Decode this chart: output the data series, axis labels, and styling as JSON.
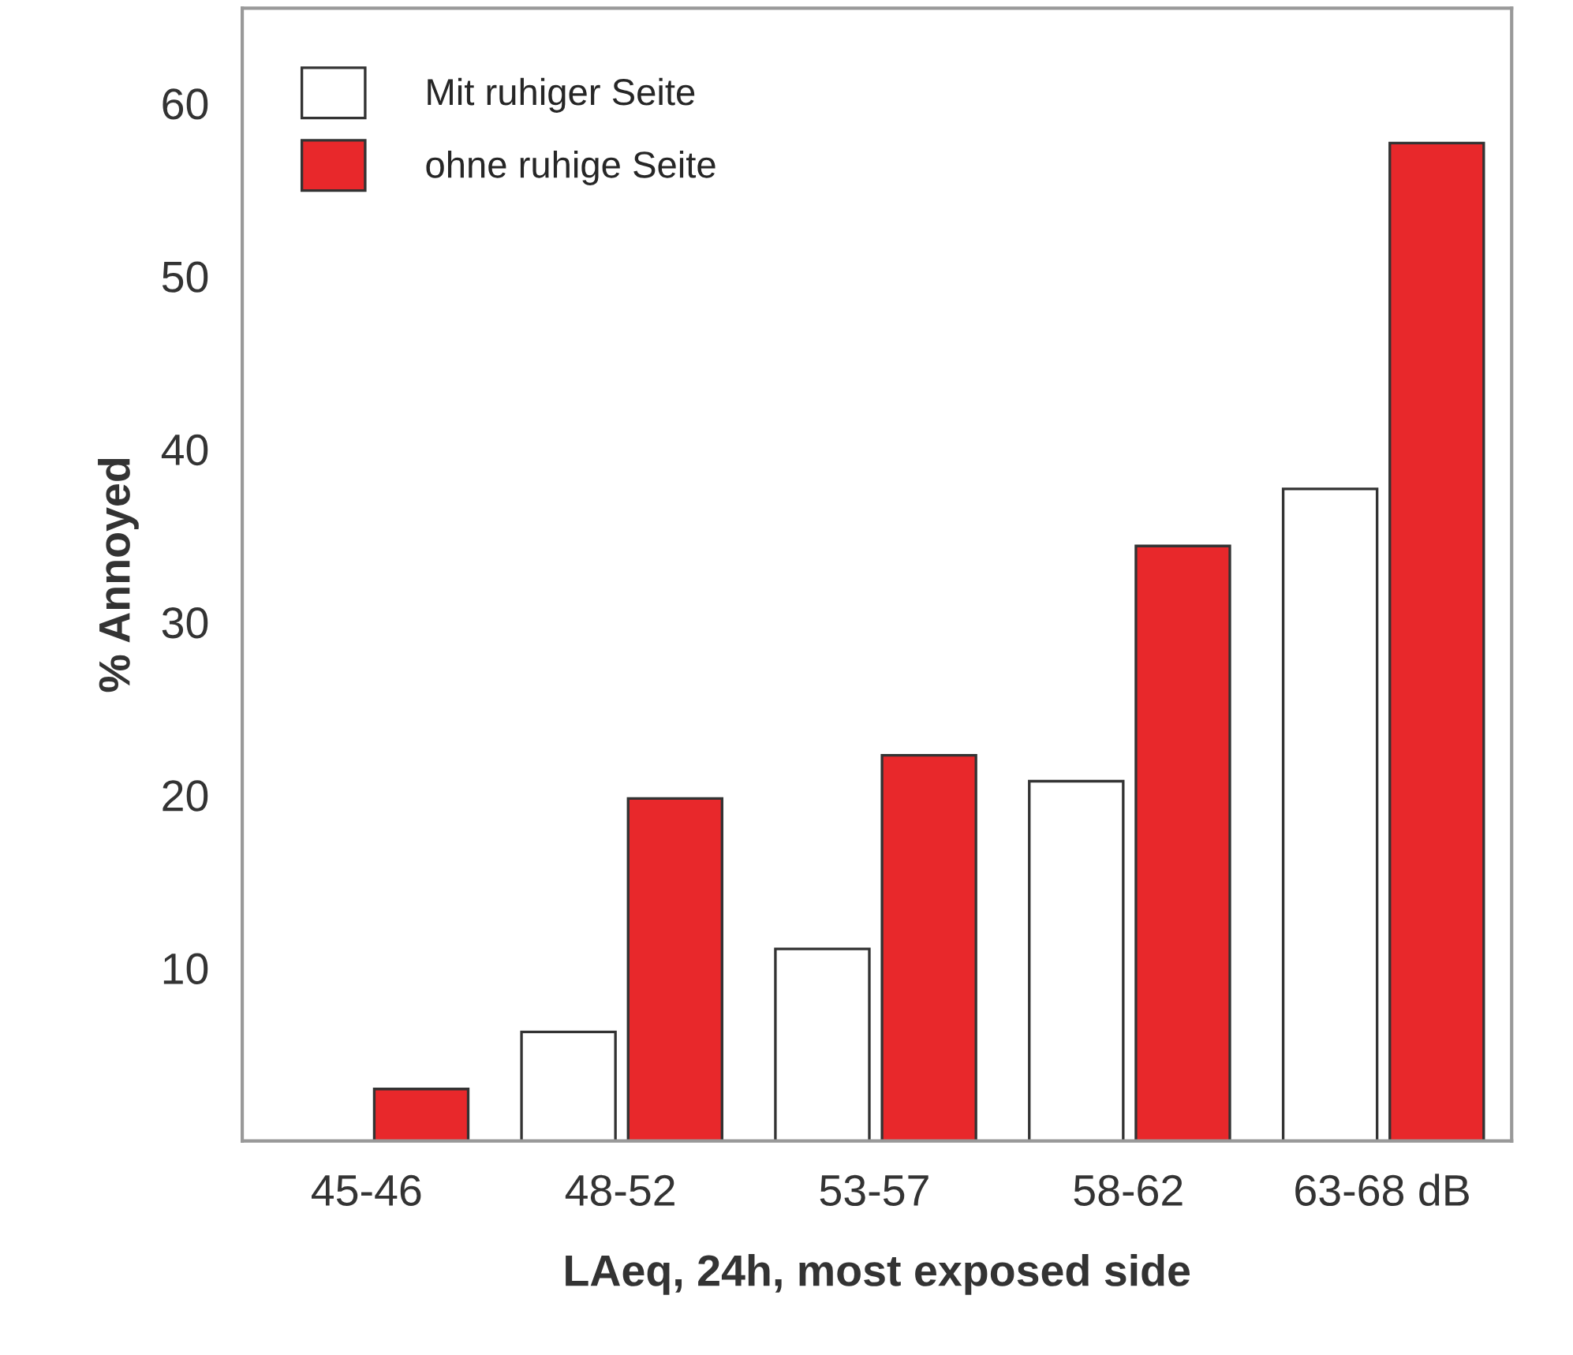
{
  "chart_data": {
    "type": "bar",
    "xlabel": "LAeq, 24h, most exposed side",
    "ylabel": "% Annoyed",
    "categories": [
      "45-46",
      "48-52",
      "53-57",
      "58-62",
      "63-68 dB"
    ],
    "series": [
      {
        "name": "Mit ruhiger Seite",
        "color": "#ffffff",
        "values": [
          null,
          6.3,
          11.1,
          20.8,
          37.7
        ]
      },
      {
        "name": "ohne ruhige Seite",
        "color": "#e8282b",
        "values": [
          3.0,
          19.8,
          22.3,
          34.4,
          57.7
        ]
      }
    ],
    "ylim": [
      0,
      65.5
    ],
    "yticks": [
      10,
      20,
      30,
      40,
      50,
      60
    ],
    "legend": "top left",
    "grid": false
  }
}
